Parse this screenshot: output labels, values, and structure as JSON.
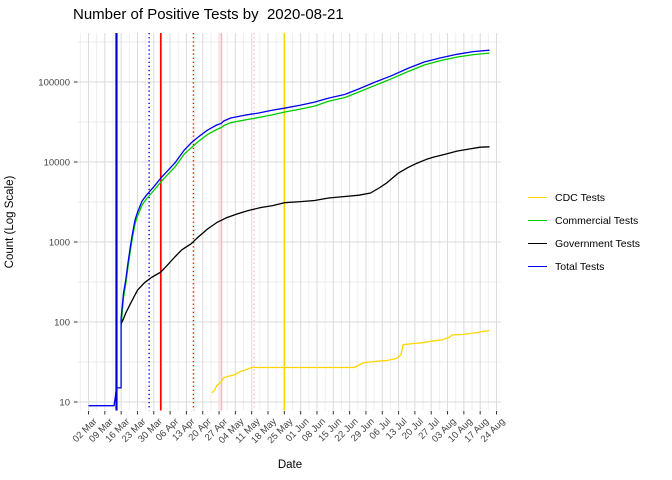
{
  "chart_data": {
    "type": "line",
    "title": "Number of Positive Tests by  2020-08-21",
    "xlabel": "Date",
    "ylabel": "Count (Log Scale)",
    "yscale": "log10",
    "ylim": [
      8,
      400000
    ],
    "grid": true,
    "legend_position": "right",
    "x_start": "2020-03-02",
    "x_end": "2020-08-24",
    "x_tick_labels": [
      "02 Mar",
      "09 Mar",
      "16 Mar",
      "23 Mar",
      "30 Mar",
      "06 Apr",
      "13 Apr",
      "20 Apr",
      "27 Apr",
      "04 May",
      "11 May",
      "18 May",
      "25 May",
      "01 Jun",
      "08 Jun",
      "15 Jun",
      "22 Jun",
      "29 Jun",
      "06 Jul",
      "13 Jul",
      "20 Jul",
      "27 Jul",
      "03 Aug",
      "10 Aug",
      "17 Aug",
      "24 Aug"
    ],
    "y_tick_labels": [
      "10",
      "100",
      "1000",
      "10000",
      "100000"
    ],
    "y_tick_values": [
      10,
      100,
      1000,
      10000,
      100000
    ],
    "series": [
      {
        "name": "CDC Tests",
        "color": "#FFD700",
        "points": [
          [
            "2020-04-24",
            13
          ],
          [
            "2020-04-25",
            14
          ],
          [
            "2020-04-26",
            16
          ],
          [
            "2020-04-28",
            18
          ],
          [
            "2020-04-29",
            20
          ],
          [
            "2020-05-01",
            21
          ],
          [
            "2020-05-04",
            22
          ],
          [
            "2020-05-06",
            24
          ],
          [
            "2020-05-08",
            25
          ],
          [
            "2020-05-11",
            27
          ],
          [
            "2020-06-24",
            27
          ],
          [
            "2020-06-26",
            29
          ],
          [
            "2020-06-28",
            31
          ],
          [
            "2020-07-02",
            32
          ],
          [
            "2020-07-08",
            33
          ],
          [
            "2020-07-12",
            35
          ],
          [
            "2020-07-14",
            39
          ],
          [
            "2020-07-15",
            52
          ],
          [
            "2020-07-20",
            54
          ],
          [
            "2020-07-23",
            55
          ],
          [
            "2020-07-28",
            58
          ],
          [
            "2020-08-01",
            60
          ],
          [
            "2020-08-04",
            65
          ],
          [
            "2020-08-05",
            69
          ],
          [
            "2020-08-10",
            70
          ],
          [
            "2020-08-13",
            72
          ],
          [
            "2020-08-16",
            74
          ],
          [
            "2020-08-18",
            76
          ],
          [
            "2020-08-21",
            78
          ]
        ]
      },
      {
        "name": "Commercial Tests",
        "color": "#00CD00",
        "points": [
          [
            "2020-03-16",
            90
          ],
          [
            "2020-03-17",
            200
          ],
          [
            "2020-03-18",
            300
          ],
          [
            "2020-03-19",
            500
          ],
          [
            "2020-03-20",
            800
          ],
          [
            "2020-03-21",
            1200
          ],
          [
            "2020-03-22",
            1700
          ],
          [
            "2020-03-23",
            2100
          ],
          [
            "2020-03-25",
            2900
          ],
          [
            "2020-03-27",
            3500
          ],
          [
            "2020-03-30",
            4400
          ],
          [
            "2020-04-02",
            5600
          ],
          [
            "2020-04-05",
            7000
          ],
          [
            "2020-04-08",
            8600
          ],
          [
            "2020-04-12",
            12500
          ],
          [
            "2020-04-15",
            15000
          ],
          [
            "2020-04-18",
            18000
          ],
          [
            "2020-04-22",
            22000
          ],
          [
            "2020-04-26",
            25500
          ],
          [
            "2020-04-28",
            27000
          ],
          [
            "2020-04-29",
            28500
          ],
          [
            "2020-05-02",
            31000
          ],
          [
            "2020-05-08",
            33500
          ],
          [
            "2020-05-14",
            36000
          ],
          [
            "2020-05-20",
            39000
          ],
          [
            "2020-05-25",
            42000
          ],
          [
            "2020-06-01",
            46000
          ],
          [
            "2020-06-07",
            50000
          ],
          [
            "2020-06-13",
            57500
          ],
          [
            "2020-06-20",
            64000
          ],
          [
            "2020-06-26",
            75000
          ],
          [
            "2020-07-03",
            91000
          ],
          [
            "2020-07-10",
            110000
          ],
          [
            "2020-07-17",
            135000
          ],
          [
            "2020-07-24",
            163000
          ],
          [
            "2020-07-31",
            185000
          ],
          [
            "2020-08-07",
            205000
          ],
          [
            "2020-08-14",
            220000
          ],
          [
            "2020-08-21",
            230000
          ]
        ]
      },
      {
        "name": "Government Tests",
        "color": "#000000",
        "points": [
          [
            "2020-03-16",
            95
          ],
          [
            "2020-03-17",
            110
          ],
          [
            "2020-03-18",
            130
          ],
          [
            "2020-03-20",
            170
          ],
          [
            "2020-03-23",
            250
          ],
          [
            "2020-03-26",
            310
          ],
          [
            "2020-03-29",
            360
          ],
          [
            "2020-04-02",
            420
          ],
          [
            "2020-04-05",
            520
          ],
          [
            "2020-04-08",
            650
          ],
          [
            "2020-04-11",
            800
          ],
          [
            "2020-04-15",
            950
          ],
          [
            "2020-04-18",
            1150
          ],
          [
            "2020-04-22",
            1450
          ],
          [
            "2020-04-26",
            1750
          ],
          [
            "2020-04-30",
            2000
          ],
          [
            "2020-05-05",
            2250
          ],
          [
            "2020-05-10",
            2500
          ],
          [
            "2020-05-15",
            2700
          ],
          [
            "2020-05-20",
            2850
          ],
          [
            "2020-05-25",
            3100
          ],
          [
            "2020-06-01",
            3200
          ],
          [
            "2020-06-07",
            3300
          ],
          [
            "2020-06-13",
            3550
          ],
          [
            "2020-06-20",
            3700
          ],
          [
            "2020-06-26",
            3850
          ],
          [
            "2020-07-01",
            4100
          ],
          [
            "2020-07-05",
            4800
          ],
          [
            "2020-07-08",
            5500
          ],
          [
            "2020-07-13",
            7300
          ],
          [
            "2020-07-17",
            8500
          ],
          [
            "2020-07-21",
            9700
          ],
          [
            "2020-07-25",
            10800
          ],
          [
            "2020-07-28",
            11500
          ],
          [
            "2020-08-02",
            12500
          ],
          [
            "2020-08-07",
            13700
          ],
          [
            "2020-08-12",
            14500
          ],
          [
            "2020-08-17",
            15300
          ],
          [
            "2020-08-21",
            15500
          ]
        ]
      },
      {
        "name": "Total Tests",
        "color": "#0000EE",
        "points": [
          [
            "2020-03-02",
            9
          ],
          [
            "2020-03-13",
            9
          ],
          [
            "2020-03-14",
            15
          ],
          [
            "2020-03-16",
            15
          ],
          [
            "2020-03-16",
            110
          ],
          [
            "2020-03-17",
            230
          ],
          [
            "2020-03-18",
            340
          ],
          [
            "2020-03-19",
            560
          ],
          [
            "2020-03-20",
            900
          ],
          [
            "2020-03-21",
            1350
          ],
          [
            "2020-03-22",
            1900
          ],
          [
            "2020-03-23",
            2350
          ],
          [
            "2020-03-25",
            3250
          ],
          [
            "2020-03-27",
            3900
          ],
          [
            "2020-03-30",
            4900
          ],
          [
            "2020-04-02",
            6300
          ],
          [
            "2020-04-05",
            7800
          ],
          [
            "2020-04-08",
            9700
          ],
          [
            "2020-04-12",
            14000
          ],
          [
            "2020-04-15",
            17300
          ],
          [
            "2020-04-18",
            20500
          ],
          [
            "2020-04-22",
            25000
          ],
          [
            "2020-04-26",
            29000
          ],
          [
            "2020-04-28",
            30500
          ],
          [
            "2020-04-29",
            32500
          ],
          [
            "2020-05-02",
            35500
          ],
          [
            "2020-05-08",
            38500
          ],
          [
            "2020-05-14",
            41000
          ],
          [
            "2020-05-20",
            44500
          ],
          [
            "2020-05-25",
            47000
          ],
          [
            "2020-06-01",
            51500
          ],
          [
            "2020-06-07",
            56000
          ],
          [
            "2020-06-13",
            63000
          ],
          [
            "2020-06-20",
            70000
          ],
          [
            "2020-06-26",
            82000
          ],
          [
            "2020-07-03",
            100000
          ],
          [
            "2020-07-10",
            120000
          ],
          [
            "2020-07-17",
            148000
          ],
          [
            "2020-07-24",
            178000
          ],
          [
            "2020-07-31",
            200000
          ],
          [
            "2020-08-07",
            222000
          ],
          [
            "2020-08-14",
            240000
          ],
          [
            "2020-08-21",
            250000
          ]
        ]
      }
    ],
    "vlines": [
      {
        "date": "2020-03-14",
        "color": "#0000CD",
        "style": "solid"
      },
      {
        "date": "2020-03-28",
        "color": "#0000CD",
        "style": "dotted"
      },
      {
        "date": "2020-04-02",
        "color": "#FF0000",
        "style": "solid"
      },
      {
        "date": "2020-04-16",
        "color": "#FF0000",
        "style": "dotted"
      },
      {
        "date": "2020-04-28",
        "color": "#FFB6C1",
        "style": "solid"
      },
      {
        "date": "2020-05-12",
        "color": "#FFB6C1",
        "style": "dotted"
      },
      {
        "date": "2020-05-25",
        "color": "#FFD700",
        "style": "solid"
      }
    ],
    "legend_entries": [
      {
        "label": "CDC Tests",
        "color": "#FFD700"
      },
      {
        "label": "Commercial Tests",
        "color": "#00CD00"
      },
      {
        "label": "Government Tests",
        "color": "#000000"
      },
      {
        "label": "Total Tests",
        "color": "#0000EE"
      }
    ]
  }
}
